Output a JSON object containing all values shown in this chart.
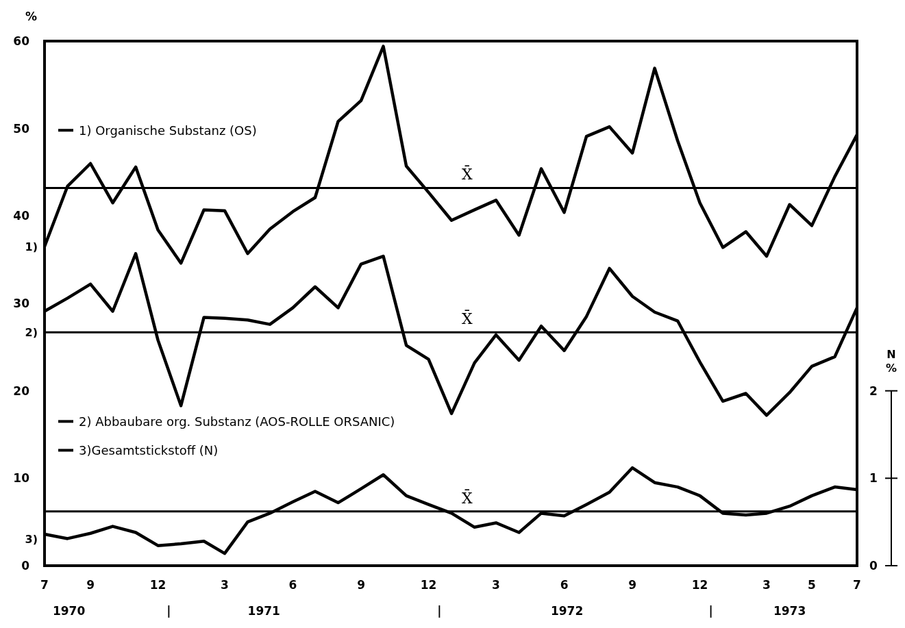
{
  "chart_data": {
    "type": "line",
    "ylabel": "%",
    "y2label": "N %",
    "x": [
      "1970-07",
      "1970-08",
      "1970-09",
      "1970-10",
      "1970-11",
      "1970-12",
      "1971-01",
      "1971-02",
      "1971-03",
      "1971-04",
      "1971-05",
      "1971-06",
      "1971-07",
      "1971-08",
      "1971-09",
      "1971-10",
      "1971-11",
      "1971-12",
      "1972-01",
      "1972-02",
      "1972-03",
      "1972-04",
      "1972-05",
      "1972-06",
      "1972-07",
      "1972-08",
      "1972-09",
      "1972-10",
      "1972-11",
      "1972-12",
      "1973-01",
      "1973-02",
      "1973-03",
      "1973-04",
      "1973-05",
      "1973-06",
      "1973-07"
    ],
    "series": [
      {
        "name": "1) Organische Substanz (OS)",
        "color": "#000000",
        "values": [
          36.5,
          43.4,
          46.0,
          41.5,
          45.6,
          38.4,
          34.6,
          40.7,
          40.6,
          35.7,
          38.5,
          40.5,
          42.1,
          50.8,
          53.2,
          59.4,
          45.7,
          42.7,
          39.5,
          40.7,
          41.8,
          37.8,
          45.4,
          40.4,
          49.1,
          50.2,
          47.2,
          56.9,
          48.6,
          41.5,
          36.4,
          38.2,
          35.4,
          41.3,
          38.9,
          44.5,
          49.3
        ]
      },
      {
        "name": "2) Abbaubare org. Substanz (AOS-ROLLE ORSANIC)",
        "color": "#000000",
        "values": [
          29.1,
          30.6,
          32.2,
          29.1,
          35.7,
          25.8,
          18.3,
          28.4,
          28.3,
          28.1,
          27.6,
          29.5,
          31.9,
          29.5,
          34.5,
          35.4,
          25.2,
          23.6,
          17.4,
          23.2,
          26.4,
          23.5,
          27.4,
          24.6,
          28.5,
          34.0,
          30.8,
          29.0,
          28.0,
          23.3,
          18.8,
          19.7,
          17.2,
          19.8,
          22.8,
          23.9,
          29.5
        ]
      },
      {
        "name": "3)Gesamtstickstoff (N)",
        "color": "#000000",
        "axis": "y2",
        "values": [
          0.36,
          0.31,
          0.37,
          0.45,
          0.38,
          0.23,
          0.25,
          0.28,
          0.14,
          0.5,
          0.6,
          0.73,
          0.85,
          0.72,
          0.88,
          1.04,
          0.8,
          0.7,
          0.6,
          0.44,
          0.49,
          0.38,
          0.6,
          0.57,
          0.7,
          0.84,
          1.12,
          0.95,
          0.9,
          0.8,
          0.6,
          0.58,
          0.6,
          0.68,
          0.8,
          0.9,
          0.87
        ]
      }
    ],
    "xlim": [
      "1970-07",
      "1973-07"
    ],
    "xticks": [
      {
        "value": "1970-07",
        "label": "7"
      },
      {
        "value": "1970-09",
        "label": "9"
      },
      {
        "value": "1970-12",
        "label": "12"
      },
      {
        "value": "1971-03",
        "label": "3"
      },
      {
        "value": "1971-06",
        "label": "6"
      },
      {
        "value": "1971-09",
        "label": "9"
      },
      {
        "value": "1971-12",
        "label": "12"
      },
      {
        "value": "1972-03",
        "label": "3"
      },
      {
        "value": "1972-06",
        "label": "6"
      },
      {
        "value": "1972-09",
        "label": "9"
      },
      {
        "value": "1972-12",
        "label": "12"
      },
      {
        "value": "1973-03",
        "label": "3"
      },
      {
        "value": "1973-05",
        "label": "5"
      },
      {
        "value": "1973-07",
        "label": "7"
      }
    ],
    "ylim": [
      0,
      60
    ],
    "yticks": [
      0,
      10,
      20,
      30,
      40,
      50,
      60
    ],
    "y2lim": [
      0,
      6
    ],
    "y2ticks": [
      0,
      1,
      2
    ],
    "ref_lines": [
      {
        "axis": "y",
        "value": 43.2,
        "label": "X̄",
        "color": "#000000"
      },
      {
        "axis": "y",
        "value": 26.7,
        "label": "X̄",
        "color": "#000000"
      },
      {
        "axis": "y2",
        "value": 0.62,
        "label": "X̄",
        "color": "#000000"
      }
    ],
    "annotations": [
      {
        "text": "1)",
        "x": "1970-07",
        "y": 36.5
      },
      {
        "text": "2)",
        "x": "1970-07",
        "y": 26.7
      },
      "3)",
      "1970",
      "|",
      "1971",
      "|",
      "1972",
      "|",
      "1973"
    ],
    "legend": "left",
    "grid": false,
    "marker": "none",
    "line_style": "solid"
  }
}
